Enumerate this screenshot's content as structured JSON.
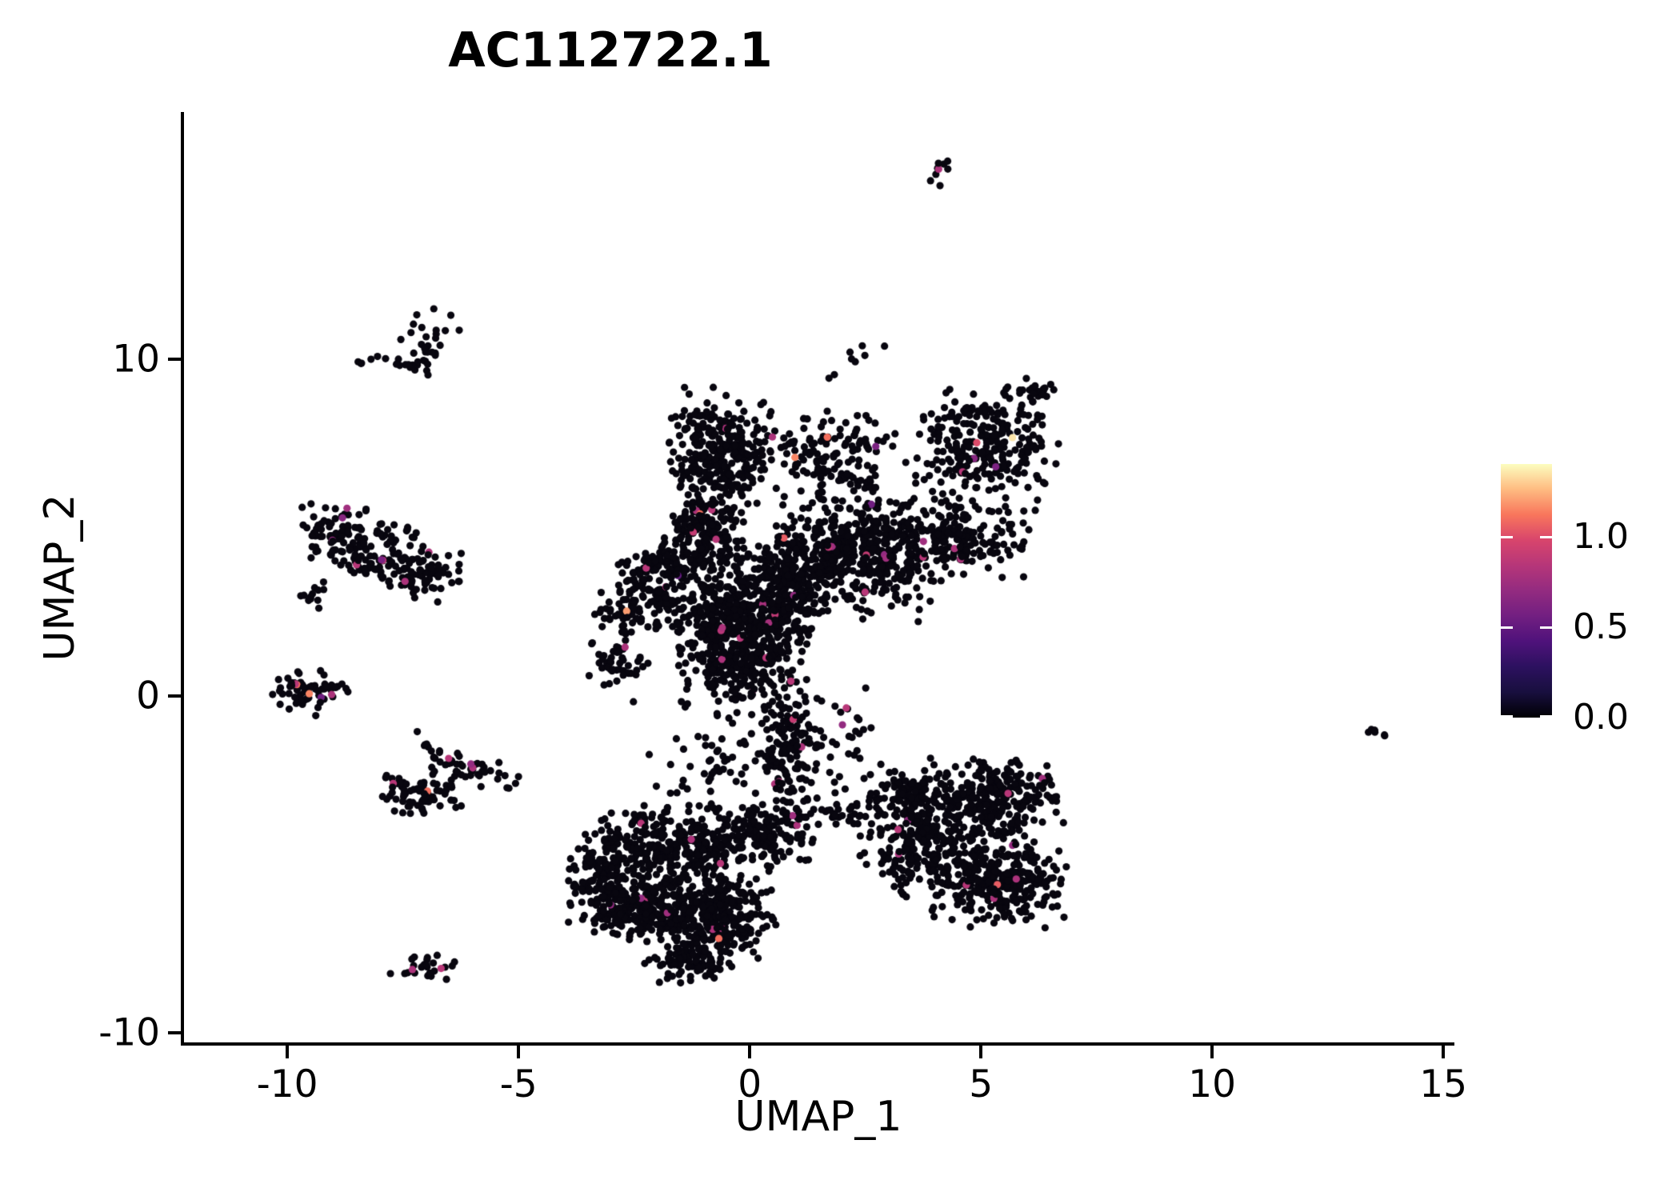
{
  "chart_data": {
    "type": "scatter",
    "title": "AC112722.1",
    "xlabel": "UMAP_1",
    "ylabel": "UMAP_2",
    "xlim": [
      -12.27,
      15.24
    ],
    "ylim": [
      -10.33,
      17.34
    ],
    "x_ticks": [
      -10,
      -5,
      0,
      5,
      10,
      15
    ],
    "y_ticks": [
      10,
      0,
      -10
    ],
    "grid": false,
    "background": "#FFFFFF",
    "axis_color": "#000000",
    "point_color_zero": "#08060f",
    "point_radius_px": 4.6,
    "seed": 42,
    "colorbar": {
      "position": "right",
      "domain": [
        0,
        1.4
      ],
      "ticks": [
        {
          "label": "1.0",
          "value": 1.0
        },
        {
          "label": "0.5",
          "value": 0.5
        },
        {
          "label": "0.0",
          "value": 0.0
        }
      ],
      "colormap": "magma",
      "stops": [
        [
          0.0,
          "#000004"
        ],
        [
          0.1,
          "#180F3E"
        ],
        [
          0.2,
          "#2C115F"
        ],
        [
          0.3,
          "#4F127B"
        ],
        [
          0.4,
          "#721F81"
        ],
        [
          0.5,
          "#932B80"
        ],
        [
          0.6,
          "#B63679"
        ],
        [
          0.7,
          "#D8456C"
        ],
        [
          0.8,
          "#F8765C"
        ],
        [
          0.9,
          "#FEBB81"
        ],
        [
          1.0,
          "#FCFDBF"
        ]
      ]
    },
    "clusters": [
      {
        "name": "top-isolated-dot-cluster",
        "blobs": [
          {
            "u": 4.15,
            "v": 15.55,
            "su": 0.13,
            "sv": 0.22,
            "n": 8
          }
        ],
        "colored": [
          0.8
        ]
      },
      {
        "name": "upper-left-small-cluster",
        "blobs": [
          {
            "u": -6.9,
            "v": 10.35,
            "su": 0.3,
            "sv": 0.55,
            "n": 30
          },
          {
            "u": -7.75,
            "v": 9.9,
            "su": 0.5,
            "sv": 0.14,
            "n": 14
          }
        ],
        "colored": []
      },
      {
        "name": "left-middle-cluster",
        "blobs": [
          {
            "u": -8.85,
            "v": 4.85,
            "su": 0.5,
            "sv": 0.45,
            "n": 70
          },
          {
            "u": -8.0,
            "v": 4.2,
            "su": 0.6,
            "sv": 0.5,
            "n": 95
          },
          {
            "u": -7.0,
            "v": 3.55,
            "su": 0.45,
            "sv": 0.4,
            "n": 60
          },
          {
            "u": -9.35,
            "v": 2.95,
            "su": 0.18,
            "sv": 0.25,
            "n": 12
          }
        ],
        "colored": [
          0.8,
          0.7,
          0.85,
          0.65,
          0.8,
          0.85,
          0.75,
          0.6
        ]
      },
      {
        "name": "far-left-zero-cluster",
        "blobs": [
          {
            "u": -9.55,
            "v": 0.1,
            "su": 0.4,
            "sv": 0.33,
            "n": 60
          }
        ],
        "colored": [
          1.1,
          1.15,
          0.8,
          0.85,
          0.55
        ]
      },
      {
        "name": "left-diagonal-cluster",
        "blobs": [
          {
            "u": -7.15,
            "v": -2.95,
            "su": 0.42,
            "sv": 0.33,
            "n": 75
          },
          {
            "u": -6.1,
            "v": -2.1,
            "su": 0.55,
            "sv": 0.2,
            "n": 40,
            "rot": -28
          },
          {
            "u": -6.85,
            "v": -1.7,
            "su": 0.25,
            "sv": 0.3,
            "n": 10
          }
        ],
        "colored": [
          0.8,
          0.85,
          0.7,
          0.85,
          1.1
        ]
      },
      {
        "name": "bottom-left-tiny-cluster",
        "blobs": [
          {
            "u": -7.1,
            "v": -8.05,
            "su": 0.33,
            "sv": 0.2,
            "n": 24
          }
        ],
        "colored": [
          0.8,
          0.85
        ]
      },
      {
        "name": "far-right-dash-cluster",
        "blobs": [
          {
            "u": 13.55,
            "v": -1.05,
            "su": 0.14,
            "sv": 0.05,
            "n": 7,
            "rot": -30
          }
        ],
        "colored": []
      },
      {
        "name": "central-main-mass",
        "blobs": [
          {
            "u": -0.6,
            "v": 7.3,
            "su": 0.52,
            "sv": 0.85,
            "n": 280
          },
          {
            "u": -1.0,
            "v": 5.0,
            "su": 0.4,
            "sv": 0.6,
            "n": 160
          },
          {
            "u": -1.9,
            "v": 3.85,
            "su": 0.55,
            "sv": 0.32,
            "n": 115,
            "rot": 15
          },
          {
            "u": -2.35,
            "v": 2.7,
            "su": 0.55,
            "sv": 0.4,
            "n": 110,
            "rot": 20
          },
          {
            "u": -2.9,
            "v": 0.9,
            "su": 0.32,
            "sv": 0.5,
            "n": 50
          },
          {
            "u": -0.15,
            "v": 1.9,
            "su": 0.65,
            "sv": 1.15,
            "n": 650
          },
          {
            "u": 0.9,
            "v": 3.4,
            "su": 0.5,
            "sv": 0.8,
            "n": 220
          },
          {
            "u": 2.3,
            "v": 4.3,
            "su": 0.8,
            "sv": 1.0,
            "n": 430
          },
          {
            "u": 4.2,
            "v": 4.6,
            "su": 0.85,
            "sv": 0.55,
            "n": 230
          },
          {
            "u": 5.1,
            "v": 7.4,
            "su": 0.8,
            "sv": 0.9,
            "n": 270
          },
          {
            "u": 6.2,
            "v": 9.0,
            "su": 0.18,
            "sv": 0.25,
            "n": 20
          },
          {
            "u": 1.7,
            "v": 7.2,
            "su": 0.85,
            "sv": 0.6,
            "n": 140
          },
          {
            "u": 2.4,
            "v": 10.0,
            "su": 0.35,
            "sv": 0.3,
            "n": 8
          },
          {
            "u": 0.85,
            "v": -1.5,
            "su": 0.3,
            "sv": 0.95,
            "n": 130
          },
          {
            "u": -0.6,
            "v": -1.9,
            "su": 0.8,
            "sv": 0.8,
            "n": 60
          },
          {
            "u": 1.9,
            "v": -1.3,
            "su": 0.5,
            "sv": 0.8,
            "n": 40
          }
        ],
        "colored": [
          0.5,
          0.55,
          0.6,
          0.6,
          0.65,
          0.7,
          0.7,
          0.7,
          0.75,
          0.75,
          0.75,
          0.78,
          0.8,
          0.8,
          0.8,
          0.8,
          0.8,
          0.82,
          0.82,
          0.85,
          0.85,
          0.85,
          0.85,
          0.85,
          0.85,
          0.88,
          0.88,
          0.9,
          0.9,
          0.8,
          0.82,
          0.85,
          0.8,
          0.78,
          0.85,
          0.9,
          0.85,
          0.8,
          0.85,
          0.8,
          0.85,
          0.8,
          1.0,
          1.05,
          1.1,
          1.1,
          1.15,
          1.2,
          1.35
        ]
      },
      {
        "name": "bottom-left-large-cluster",
        "blobs": [
          {
            "u": -1.5,
            "v": -4.5,
            "su": 0.95,
            "sv": 0.6,
            "n": 360
          },
          {
            "u": -2.4,
            "v": -6.2,
            "su": 0.75,
            "sv": 0.5,
            "n": 320
          },
          {
            "u": -0.65,
            "v": -6.6,
            "su": 0.6,
            "sv": 0.55,
            "n": 300
          },
          {
            "u": -1.3,
            "v": -7.9,
            "su": 0.45,
            "sv": 0.28,
            "n": 90
          },
          {
            "u": -3.3,
            "v": -5.0,
            "su": 0.28,
            "sv": 0.55,
            "n": 75
          },
          {
            "u": 0.35,
            "v": -4.0,
            "su": 0.5,
            "sv": 0.45,
            "n": 130
          }
        ],
        "colored": [
          0.8,
          0.85,
          0.7,
          0.85,
          0.75,
          0.8,
          0.7,
          0.8,
          0.85,
          0.8,
          0.75,
          1.1
        ]
      },
      {
        "name": "bottom-right-cluster",
        "blobs": [
          {
            "u": 5.05,
            "v": -3.1,
            "su": 0.8,
            "sv": 0.6,
            "n": 300
          },
          {
            "u": 3.7,
            "v": -4.5,
            "su": 0.6,
            "sv": 0.7,
            "n": 220
          },
          {
            "u": 5.4,
            "v": -5.5,
            "su": 0.7,
            "sv": 0.65,
            "n": 300
          },
          {
            "u": 3.35,
            "v": -2.8,
            "su": 0.4,
            "sv": 0.45,
            "n": 90
          },
          {
            "u": 2.1,
            "v": -3.5,
            "su": 0.5,
            "sv": 0.25,
            "n": 45
          }
        ],
        "colored": [
          0.8,
          0.85,
          0.7,
          0.85,
          0.75,
          0.8,
          0.8,
          0.7,
          0.85,
          1.05
        ]
      }
    ]
  }
}
